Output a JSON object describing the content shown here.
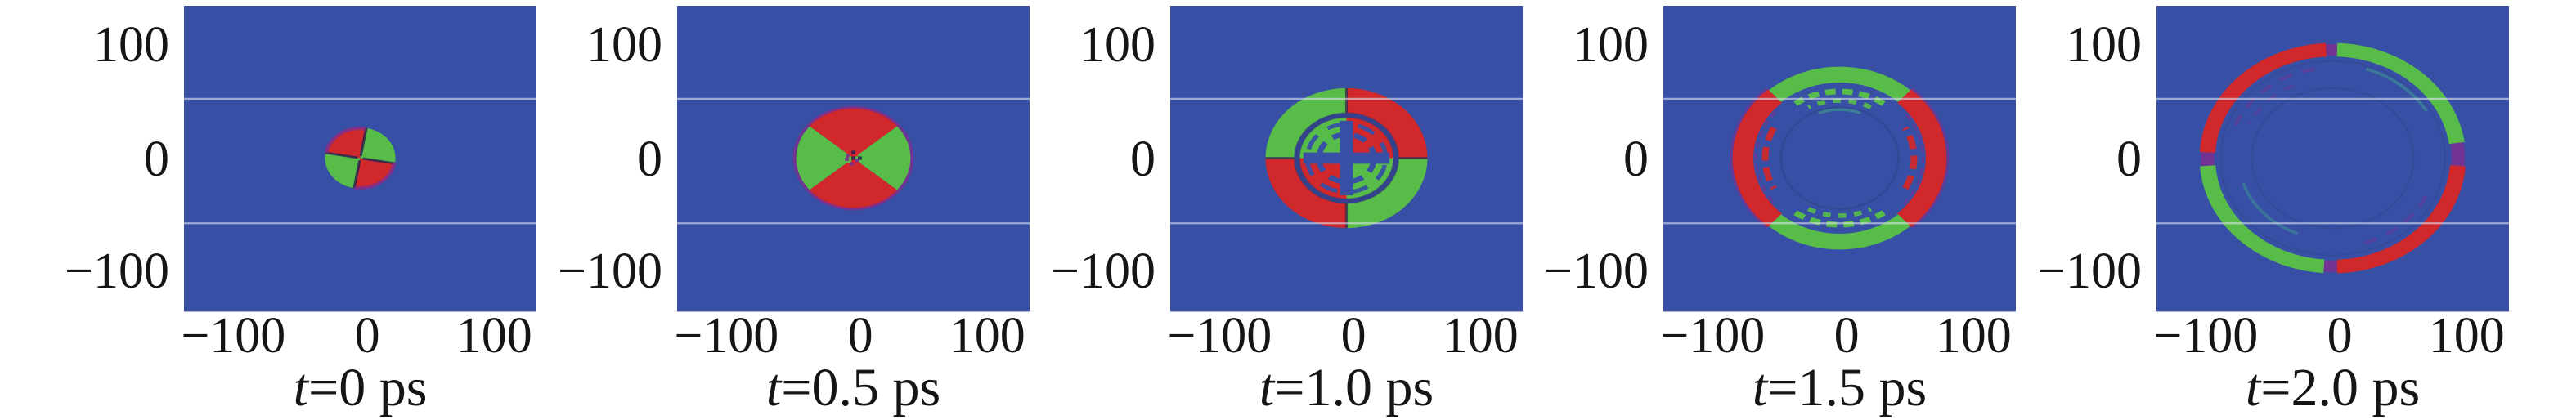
{
  "figure": {
    "kind": "time-evolution simulation snapshots",
    "panel_count": 5
  },
  "chart_data": {
    "type": "heatmap",
    "title": "",
    "description": "Five snapshots of a circularly expanding quadrupolar excitation pattern on a blue background at t = 0, 0.5, 1.0, 1.5 and 2.0 ps; red and green lobes/arcs alternate by quadrant and propagate outward as a ring.",
    "colors": {
      "bg": "#3750a5",
      "red": "#d0282b",
      "green": "#58bc49",
      "purple": "#7c2e90",
      "dark": "#2a2550",
      "teal": "#3fa08d",
      "grid": "#e2e6f4",
      "frame": "#a9aed6",
      "text": "#151515"
    },
    "axes": {
      "xlim": [
        -135,
        135
      ],
      "ylim": [
        -135,
        135
      ],
      "x_ticks": [
        "−100",
        "0",
        "100"
      ],
      "y_ticks": [
        "100",
        "0",
        "−100"
      ],
      "gridline_y": [
        52.6,
        -57.7
      ],
      "grid_on": true,
      "legend": "none"
    },
    "panels": [
      {
        "caption_var": "t",
        "caption_rest": "=0 ps",
        "time_ps": 0,
        "pattern": "quadrant disk: top-left red, top-right green, bottom-left green, bottom-right red, tilted ~10° clockwise",
        "outer_radius": 27,
        "shapes": [
          {
            "kind": "sector",
            "r0": 0,
            "r1": 27,
            "a0": -10,
            "a1": 80,
            "color": "green"
          },
          {
            "kind": "sector",
            "r0": 0,
            "r1": 27,
            "a0": 80,
            "a1": 170,
            "color": "red"
          },
          {
            "kind": "sector",
            "r0": 0,
            "r1": 27,
            "a0": 170,
            "a1": 260,
            "color": "green"
          },
          {
            "kind": "sector",
            "r0": 0,
            "r1": 27,
            "a0": 260,
            "a1": 350,
            "color": "red"
          },
          {
            "kind": "spokes",
            "angles": [
              -10,
              80,
              170,
              260
            ],
            "r0": 2,
            "r": 27,
            "color": "dark",
            "width": 2,
            "opacity": 0.85
          },
          {
            "kind": "arc",
            "r": 26.5,
            "a0": 80,
            "a1": 170,
            "width": 3,
            "color": "purple",
            "opacity": 0.8
          },
          {
            "kind": "arc",
            "r": 26.5,
            "a0": 260,
            "a1": 350,
            "width": 3,
            "color": "purple",
            "opacity": 0.8
          }
        ]
      },
      {
        "caption_var": "t",
        "caption_rest": "=0.5 ps",
        "time_ps": 0.5,
        "pattern": "bowtie disk: red wedges top and bottom, green lobes left and right, purple rim, dark speckle at center",
        "outer_radius": 45,
        "shapes": [
          {
            "kind": "sector",
            "r0": 0,
            "r1": 45,
            "a0": 40,
            "a1": 140,
            "color": "red"
          },
          {
            "kind": "sector",
            "r0": 0,
            "r1": 44,
            "a0": 140,
            "a1": 220,
            "color": "green"
          },
          {
            "kind": "sector",
            "r0": 0,
            "r1": 45,
            "a0": 220,
            "a1": 320,
            "color": "red"
          },
          {
            "kind": "sector",
            "r0": 0,
            "r1": 44,
            "a0": 320,
            "a1": 400,
            "color": "green"
          },
          {
            "kind": "arc",
            "r": 45,
            "a0": 0,
            "a1": 360,
            "width": 2.5,
            "color": "purple",
            "opacity": 0.8
          },
          {
            "kind": "speckle",
            "size": 3,
            "color_sequence": [
              "dark",
              "purple",
              "green",
              "red",
              "purple",
              "dark",
              "purple",
              "dark",
              "purple"
            ]
          }
        ]
      },
      {
        "caption_var": "t",
        "caption_rest": "=1.0 ps",
        "time_ps": 1.0,
        "pattern": "quadrant ring: top-left green, top-right red, bottom-left red, bottom-right green; fragmented same-color interior with blue cross and blue ring gaps",
        "outer_radius": 62,
        "shapes": [
          {
            "kind": "sector",
            "r0": 40,
            "r1": 62,
            "a0": 0,
            "a1": 90,
            "color": "red"
          },
          {
            "kind": "sector",
            "r0": 40,
            "r1": 62,
            "a0": 90,
            "a1": 180,
            "color": "green"
          },
          {
            "kind": "sector",
            "r0": 40,
            "r1": 62,
            "a0": 180,
            "a1": 270,
            "color": "red"
          },
          {
            "kind": "sector",
            "r0": 40,
            "r1": 62,
            "a0": 270,
            "a1": 360,
            "color": "green"
          },
          {
            "kind": "spokes",
            "angles": [
              0,
              90,
              180,
              270
            ],
            "r0": 40,
            "r": 62,
            "color": "dark",
            "width": 2,
            "opacity": 0.7
          },
          {
            "kind": "sector",
            "r0": 0,
            "r1": 36,
            "a0": 0,
            "a1": 90,
            "color": "red"
          },
          {
            "kind": "sector",
            "r0": 0,
            "r1": 36,
            "a0": 90,
            "a1": 180,
            "color": "green"
          },
          {
            "kind": "sector",
            "r0": 0,
            "r1": 36,
            "a0": 180,
            "a1": 270,
            "color": "red"
          },
          {
            "kind": "sector",
            "r0": 0,
            "r1": 36,
            "a0": 270,
            "a1": 360,
            "color": "green"
          },
          {
            "kind": "arc",
            "r": 38,
            "a0": 0,
            "a1": 360,
            "width": 5,
            "color": "dark",
            "opacity": 0.3
          },
          {
            "kind": "arc",
            "r": 30,
            "a0": 0,
            "a1": 360,
            "width": 3.5,
            "color": "bg",
            "dash": [
              14,
              10
            ],
            "opacity": 0.95
          },
          {
            "kind": "arc",
            "r": 21,
            "a0": 0,
            "a1": 360,
            "width": 4.5,
            "color": "bg",
            "dash": [
              10,
              7
            ]
          },
          {
            "kind": "cross",
            "len": 33,
            "width": 10,
            "color": "bg"
          }
        ]
      },
      {
        "caption_var": "t",
        "caption_rest": "=1.5 ps",
        "time_ps": 1.5,
        "pattern": "ring of arcs: green arcs north and south, red arcs east and west; dashed green/red echo arcs inside, blue center",
        "outer_radius": 81,
        "shapes": [
          {
            "kind": "sector",
            "r0": 67,
            "r1": 81,
            "a0": 48,
            "a1": 132,
            "color": "green"
          },
          {
            "kind": "sector",
            "r0": 66,
            "r1": 82,
            "a0": 132,
            "a1": 228,
            "color": "red"
          },
          {
            "kind": "sector",
            "r0": 67,
            "r1": 81,
            "a0": 228,
            "a1": 312,
            "color": "green"
          },
          {
            "kind": "sector",
            "r0": 66,
            "r1": 82,
            "a0": 312,
            "a1": 408,
            "color": "red"
          },
          {
            "kind": "arc",
            "r": 83,
            "a0": 132,
            "a1": 228,
            "width": 2,
            "color": "purple",
            "opacity": 0.6
          },
          {
            "kind": "arc",
            "r": 83,
            "a0": 312,
            "a1": 408,
            "width": 2,
            "color": "purple",
            "opacity": 0.6
          },
          {
            "kind": "arc",
            "r": 59,
            "a0": 55,
            "a1": 125,
            "width": 5,
            "color": "green",
            "dash": [
              8,
              5
            ]
          },
          {
            "kind": "arc",
            "r": 51,
            "a0": 62,
            "a1": 118,
            "width": 4,
            "color": "green",
            "dash": [
              6,
              6
            ],
            "opacity": 0.9
          },
          {
            "kind": "arc",
            "r": 43,
            "a0": 68,
            "a1": 112,
            "width": 2.5,
            "color": "teal",
            "opacity": 0.55
          },
          {
            "kind": "arc",
            "r": 59,
            "a0": 235,
            "a1": 305,
            "width": 5,
            "color": "green",
            "dash": [
              8,
              5
            ]
          },
          {
            "kind": "arc",
            "r": 51,
            "a0": 242,
            "a1": 298,
            "width": 4,
            "color": "green",
            "dash": [
              6,
              6
            ],
            "opacity": 0.9
          },
          {
            "kind": "arc",
            "r": 57,
            "a0": 152,
            "a1": 208,
            "width": 5,
            "color": "red",
            "dash": [
              12,
              6
            ],
            "opacity": 0.95
          },
          {
            "kind": "arc",
            "r": 57,
            "a0": -28,
            "a1": 28,
            "width": 5,
            "color": "red",
            "dash": [
              12,
              6
            ],
            "opacity": 0.95
          },
          {
            "kind": "arc",
            "r": 64,
            "a0": 140,
            "a1": 220,
            "width": 2,
            "color": "purple",
            "dash": [
              6,
              4
            ],
            "opacity": 0.6
          },
          {
            "kind": "arc",
            "r": 64,
            "a0": -40,
            "a1": 40,
            "width": 2,
            "color": "purple",
            "dash": [
              6,
              4
            ],
            "opacity": 0.6
          },
          {
            "kind": "arc",
            "r": 45,
            "a0": 0,
            "a1": 360,
            "width": 1.5,
            "color": "dark",
            "opacity": 0.2
          }
        ]
      },
      {
        "caption_var": "t",
        "caption_rest": "=2.0 ps",
        "time_ps": 2.0,
        "pattern": "large ring: red arcs north-west and south-east, green arcs north-east and south-west, purple pinches at junctions; very faint interior rings",
        "outer_radius": 102,
        "shapes": [
          {
            "kind": "sector",
            "r0": 90,
            "r1": 102,
            "a0": 93,
            "a1": 177,
            "color": "red"
          },
          {
            "kind": "sector",
            "r0": 90,
            "r1": 102,
            "a0": 8,
            "a1": 88,
            "color": "green"
          },
          {
            "kind": "sector",
            "r0": 90,
            "r1": 102,
            "a0": 184,
            "a1": 266,
            "color": "green"
          },
          {
            "kind": "sector",
            "r0": 90,
            "r1": 102,
            "a0": 272,
            "a1": 356,
            "color": "red"
          },
          {
            "kind": "sector",
            "r0": 91,
            "r1": 101,
            "a0": 88,
            "a1": 93,
            "color": "purple",
            "opacity": 0.85
          },
          {
            "kind": "sector",
            "r0": 91,
            "r1": 101,
            "a0": 177,
            "a1": 184,
            "color": "purple",
            "opacity": 0.85
          },
          {
            "kind": "sector",
            "r0": 91,
            "r1": 101,
            "a0": 266,
            "a1": 272,
            "color": "purple",
            "opacity": 0.85
          },
          {
            "kind": "sector",
            "r0": 91,
            "r1": 101,
            "a0": 356,
            "a1": 368,
            "color": "purple",
            "opacity": 0.85
          },
          {
            "kind": "arc",
            "r": 80,
            "a0": 100,
            "a1": 165,
            "width": 3,
            "color": "purple",
            "dash": [
              10,
              8
            ],
            "opacity": 0.45
          },
          {
            "kind": "arc",
            "r": 71,
            "a0": 115,
            "a1": 155,
            "width": 2.5,
            "color": "purple",
            "dash": [
              8,
              8
            ],
            "opacity": 0.35
          },
          {
            "kind": "arc",
            "r": 83,
            "a0": 30,
            "a1": 72,
            "width": 2.5,
            "color": "teal",
            "opacity": 0.5
          },
          {
            "kind": "arc",
            "r": 72,
            "a0": 198,
            "a1": 248,
            "width": 2.5,
            "color": "teal",
            "opacity": 0.45
          },
          {
            "kind": "arc",
            "r": 79,
            "a0": 288,
            "a1": 336,
            "width": 3,
            "color": "purple",
            "dash": [
              10,
              8
            ],
            "opacity": 0.4
          },
          {
            "kind": "arc",
            "r": 62,
            "a0": 0,
            "a1": 360,
            "width": 1.5,
            "color": "dark",
            "opacity": 0.15
          },
          {
            "kind": "arc",
            "r": 86,
            "a0": 0,
            "a1": 360,
            "width": 1.5,
            "color": "dark",
            "opacity": 0.12
          }
        ]
      }
    ]
  }
}
